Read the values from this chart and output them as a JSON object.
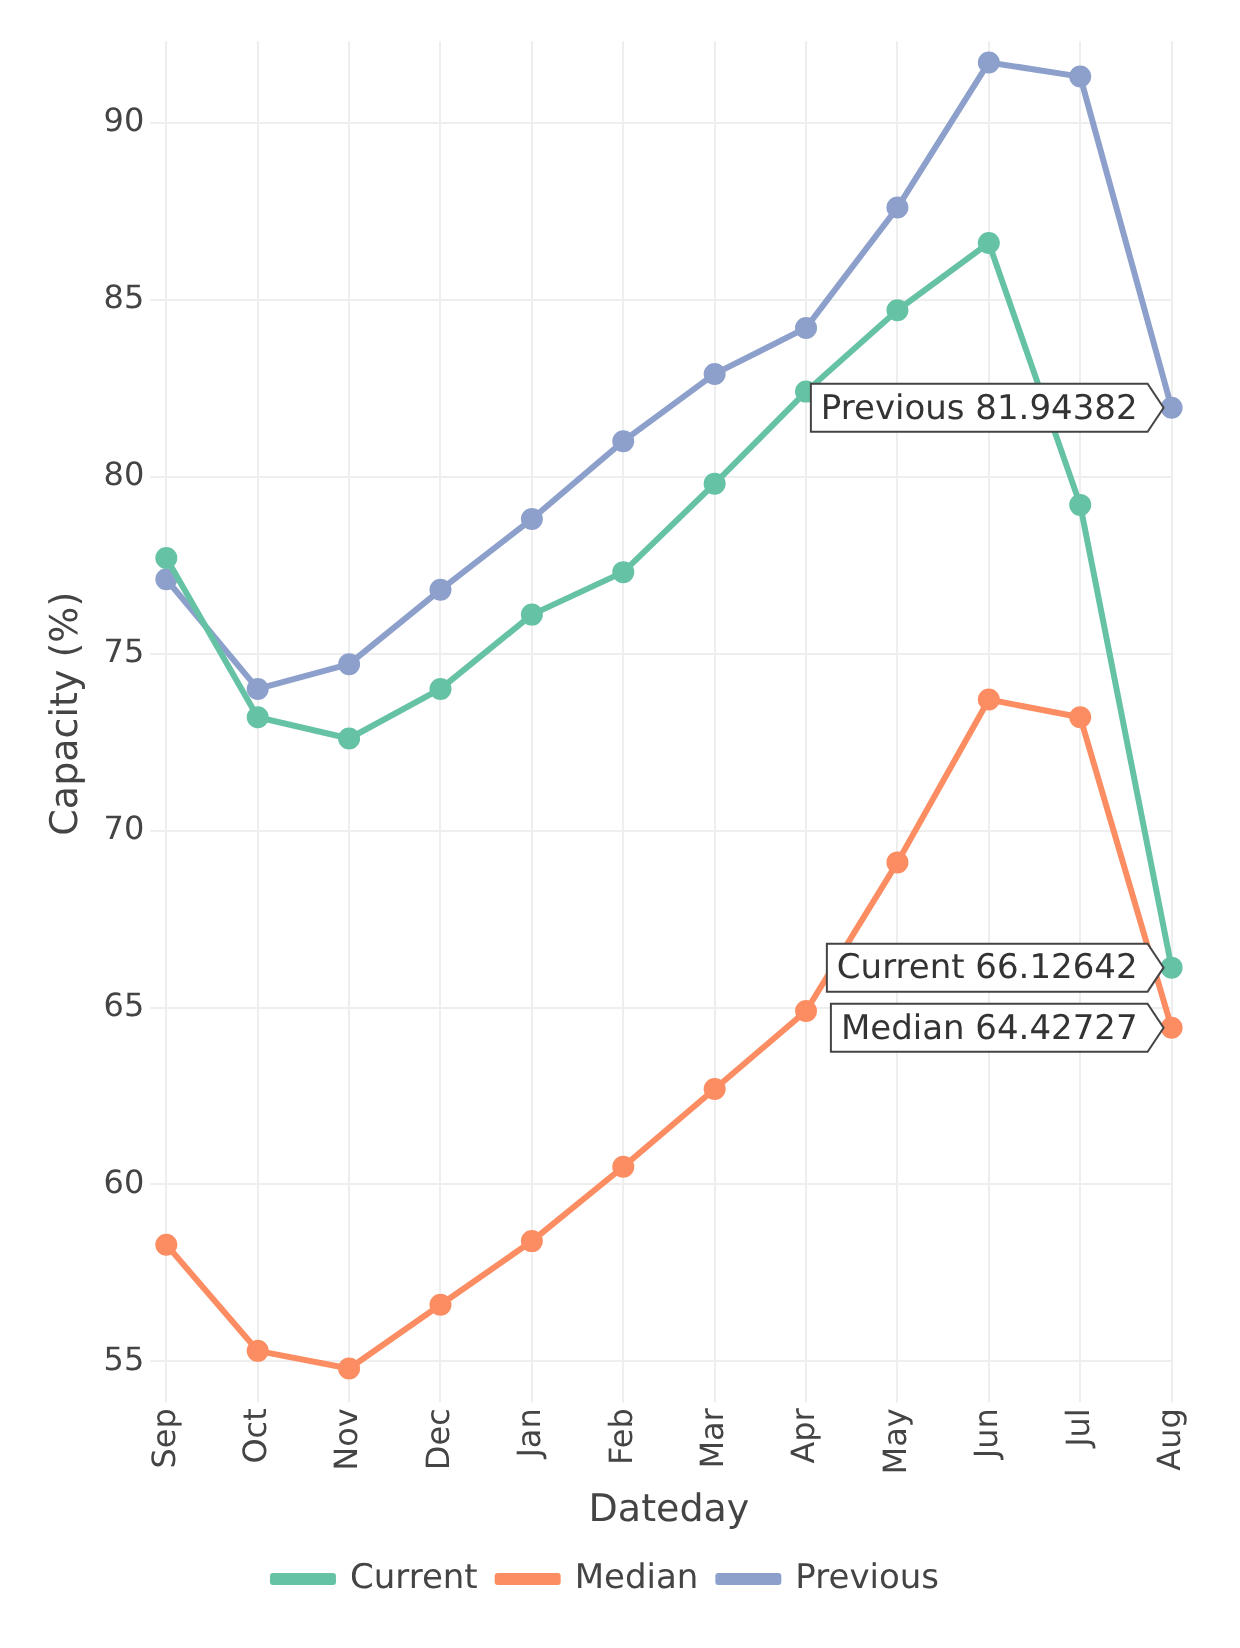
{
  "chart_data": {
    "type": "line",
    "xlabel": "Dateday",
    "ylabel": "Capacity (%)",
    "categories": [
      "Sep",
      "Oct",
      "Nov",
      "Dec",
      "Jan",
      "Feb",
      "Mar",
      "Apr",
      "May",
      "Jun",
      "Jul",
      "Aug"
    ],
    "series": [
      {
        "name": "Current",
        "color": "#66c2a5",
        "values": [
          77.7,
          73.2,
          72.6,
          74.0,
          76.1,
          77.3,
          79.8,
          82.4,
          84.7,
          86.6,
          79.2,
          66.12642
        ]
      },
      {
        "name": "Median",
        "color": "#fc8d62",
        "values": [
          58.3,
          55.3,
          54.8,
          56.6,
          58.4,
          60.5,
          62.7,
          64.9,
          69.1,
          73.7,
          73.2,
          64.42727
        ]
      },
      {
        "name": "Previous",
        "color": "#8da0cb",
        "values": [
          77.1,
          74.0,
          74.7,
          76.8,
          78.8,
          81.0,
          82.9,
          84.2,
          87.6,
          91.7,
          91.3,
          81.94382
        ]
      }
    ],
    "ylim": [
      54.3,
      92.3
    ],
    "yticks": [
      55,
      60,
      65,
      70,
      75,
      80,
      85,
      90
    ],
    "grid": true,
    "legend": "bottom",
    "marker": "circle",
    "line_style": "solid",
    "annotations": [
      {
        "text": "Previous 81.94382",
        "x": "Aug",
        "y": 81.94382
      },
      {
        "text": "Current 66.12642",
        "x": "Aug",
        "y": 66.12642
      },
      {
        "text": "Median 64.42727",
        "x": "Aug",
        "y": 64.42727
      }
    ]
  }
}
